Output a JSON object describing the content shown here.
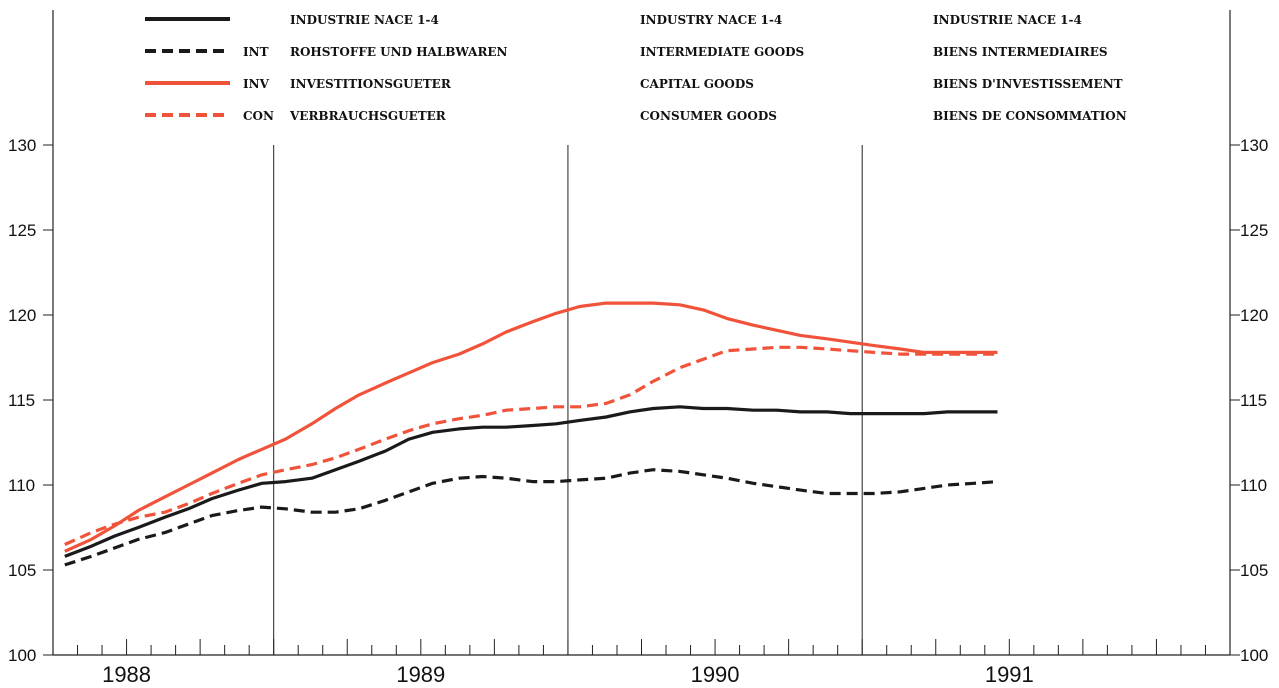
{
  "chart_data": {
    "type": "line",
    "ylim": [
      100,
      130
    ],
    "yticks": [
      "100",
      "105",
      "110",
      "115",
      "120",
      "125",
      "130"
    ],
    "xlim": [
      1987.75,
      1991.75
    ],
    "year_labels": [
      {
        "label": "1988",
        "x": 1988.0
      },
      {
        "label": "1989",
        "x": 1989.0
      },
      {
        "label": "1990",
        "x": 1990.0
      },
      {
        "label": "1991",
        "x": 1991.0
      }
    ],
    "legend": {
      "columns": [
        {
          "header": "INDUSTRIE NACE 1-4",
          "labels": [
            "ROHSTOFFE UND HALBWAREN",
            "INVESTITIONSGUETER",
            "VERBRAUCHSGUETER"
          ]
        },
        {
          "header": "INDUSTRY NACE 1-4",
          "labels": [
            "INTERMEDIATE GOODS",
            "CAPITAL GOODS",
            "CONSUMER GOODS"
          ]
        },
        {
          "header": "INDUSTRIE NACE 1-4",
          "labels": [
            "BIENS INTERMEDIAIRES",
            "BIENS D'INVESTISSEMENT",
            "BIENS DE CONSOMMATION"
          ]
        }
      ]
    },
    "series": [
      {
        "code": "",
        "color": "#1a1a1a",
        "dash": "solid",
        "x": [
          1987.79,
          1987.88,
          1987.96,
          1988.04,
          1988.13,
          1988.21,
          1988.29,
          1988.38,
          1988.46,
          1988.54,
          1988.63,
          1988.71,
          1988.79,
          1988.88,
          1988.96,
          1989.04,
          1989.13,
          1989.21,
          1989.29,
          1989.38,
          1989.46,
          1989.54,
          1989.63,
          1989.71,
          1989.79,
          1989.88,
          1989.96,
          1990.04,
          1990.13,
          1990.21,
          1990.29,
          1990.38,
          1990.46,
          1990.54,
          1990.63,
          1990.71,
          1990.79,
          1990.88,
          1990.96
        ],
        "y": [
          105.8,
          106.4,
          107.0,
          107.5,
          108.1,
          108.6,
          109.2,
          109.7,
          110.1,
          110.2,
          110.4,
          110.9,
          111.4,
          112.0,
          112.7,
          113.1,
          113.3,
          113.4,
          113.4,
          113.5,
          113.6,
          113.8,
          114.0,
          114.3,
          114.5,
          114.6,
          114.5,
          114.5,
          114.4,
          114.4,
          114.3,
          114.3,
          114.2,
          114.2,
          114.2,
          114.2,
          114.3,
          114.3,
          114.3
        ]
      },
      {
        "code": "INT",
        "color": "#1a1a1a",
        "dash": "dashed",
        "x": [
          1987.79,
          1987.88,
          1987.96,
          1988.04,
          1988.13,
          1988.21,
          1988.29,
          1988.38,
          1988.46,
          1988.54,
          1988.63,
          1988.71,
          1988.79,
          1988.88,
          1988.96,
          1989.04,
          1989.13,
          1989.21,
          1989.29,
          1989.38,
          1989.46,
          1989.54,
          1989.63,
          1989.71,
          1989.79,
          1989.88,
          1989.96,
          1990.04,
          1990.13,
          1990.21,
          1990.29,
          1990.38,
          1990.46,
          1990.54,
          1990.63,
          1990.71,
          1990.79,
          1990.88,
          1990.96
        ],
        "y": [
          105.3,
          105.8,
          106.3,
          106.8,
          107.2,
          107.7,
          108.2,
          108.5,
          108.7,
          108.6,
          108.4,
          108.4,
          108.6,
          109.1,
          109.6,
          110.1,
          110.4,
          110.5,
          110.4,
          110.2,
          110.2,
          110.3,
          110.4,
          110.7,
          110.9,
          110.8,
          110.6,
          110.4,
          110.1,
          109.9,
          109.7,
          109.5,
          109.5,
          109.5,
          109.6,
          109.8,
          110.0,
          110.1,
          110.2
        ]
      },
      {
        "code": "INV",
        "color": "#f0533a",
        "dash": "solid",
        "x": [
          1987.79,
          1987.88,
          1987.96,
          1988.04,
          1988.13,
          1988.21,
          1988.29,
          1988.38,
          1988.46,
          1988.54,
          1988.63,
          1988.71,
          1988.79,
          1988.88,
          1988.96,
          1989.04,
          1989.13,
          1989.21,
          1989.29,
          1989.38,
          1989.46,
          1989.54,
          1989.63,
          1989.71,
          1989.79,
          1989.88,
          1989.96,
          1990.04,
          1990.13,
          1990.21,
          1990.29,
          1990.38,
          1990.46,
          1990.54,
          1990.63,
          1990.71,
          1990.79,
          1990.88,
          1990.96
        ],
        "y": [
          106.1,
          106.8,
          107.6,
          108.5,
          109.3,
          110.0,
          110.7,
          111.5,
          112.1,
          112.7,
          113.6,
          114.5,
          115.3,
          116.0,
          116.6,
          117.2,
          117.7,
          118.3,
          119.0,
          119.6,
          120.1,
          120.5,
          120.7,
          120.7,
          120.7,
          120.6,
          120.3,
          119.8,
          119.4,
          119.1,
          118.8,
          118.6,
          118.4,
          118.2,
          118.0,
          117.8,
          117.8,
          117.8,
          117.8
        ]
      },
      {
        "code": "CON",
        "color": "#f0533a",
        "dash": "dashed",
        "x": [
          1987.79,
          1987.88,
          1987.96,
          1988.04,
          1988.13,
          1988.21,
          1988.29,
          1988.38,
          1988.46,
          1988.54,
          1988.63,
          1988.71,
          1988.79,
          1988.88,
          1988.96,
          1989.04,
          1989.13,
          1989.21,
          1989.29,
          1989.38,
          1989.46,
          1989.54,
          1989.63,
          1989.71,
          1989.79,
          1989.88,
          1989.96,
          1990.04,
          1990.13,
          1990.21,
          1990.29,
          1990.38,
          1990.46,
          1990.54,
          1990.63,
          1990.71,
          1990.79,
          1990.88,
          1990.96
        ],
        "y": [
          106.5,
          107.2,
          107.7,
          108.1,
          108.4,
          108.9,
          109.5,
          110.1,
          110.6,
          110.9,
          111.2,
          111.6,
          112.1,
          112.7,
          113.2,
          113.6,
          113.9,
          114.1,
          114.4,
          114.5,
          114.6,
          114.6,
          114.8,
          115.3,
          116.1,
          116.9,
          117.4,
          117.9,
          118.0,
          118.1,
          118.1,
          118.0,
          117.9,
          117.8,
          117.7,
          117.7,
          117.7,
          117.7,
          117.7
        ]
      }
    ],
    "grid": "vertical lines at year boundaries",
    "legend_position": "top"
  }
}
